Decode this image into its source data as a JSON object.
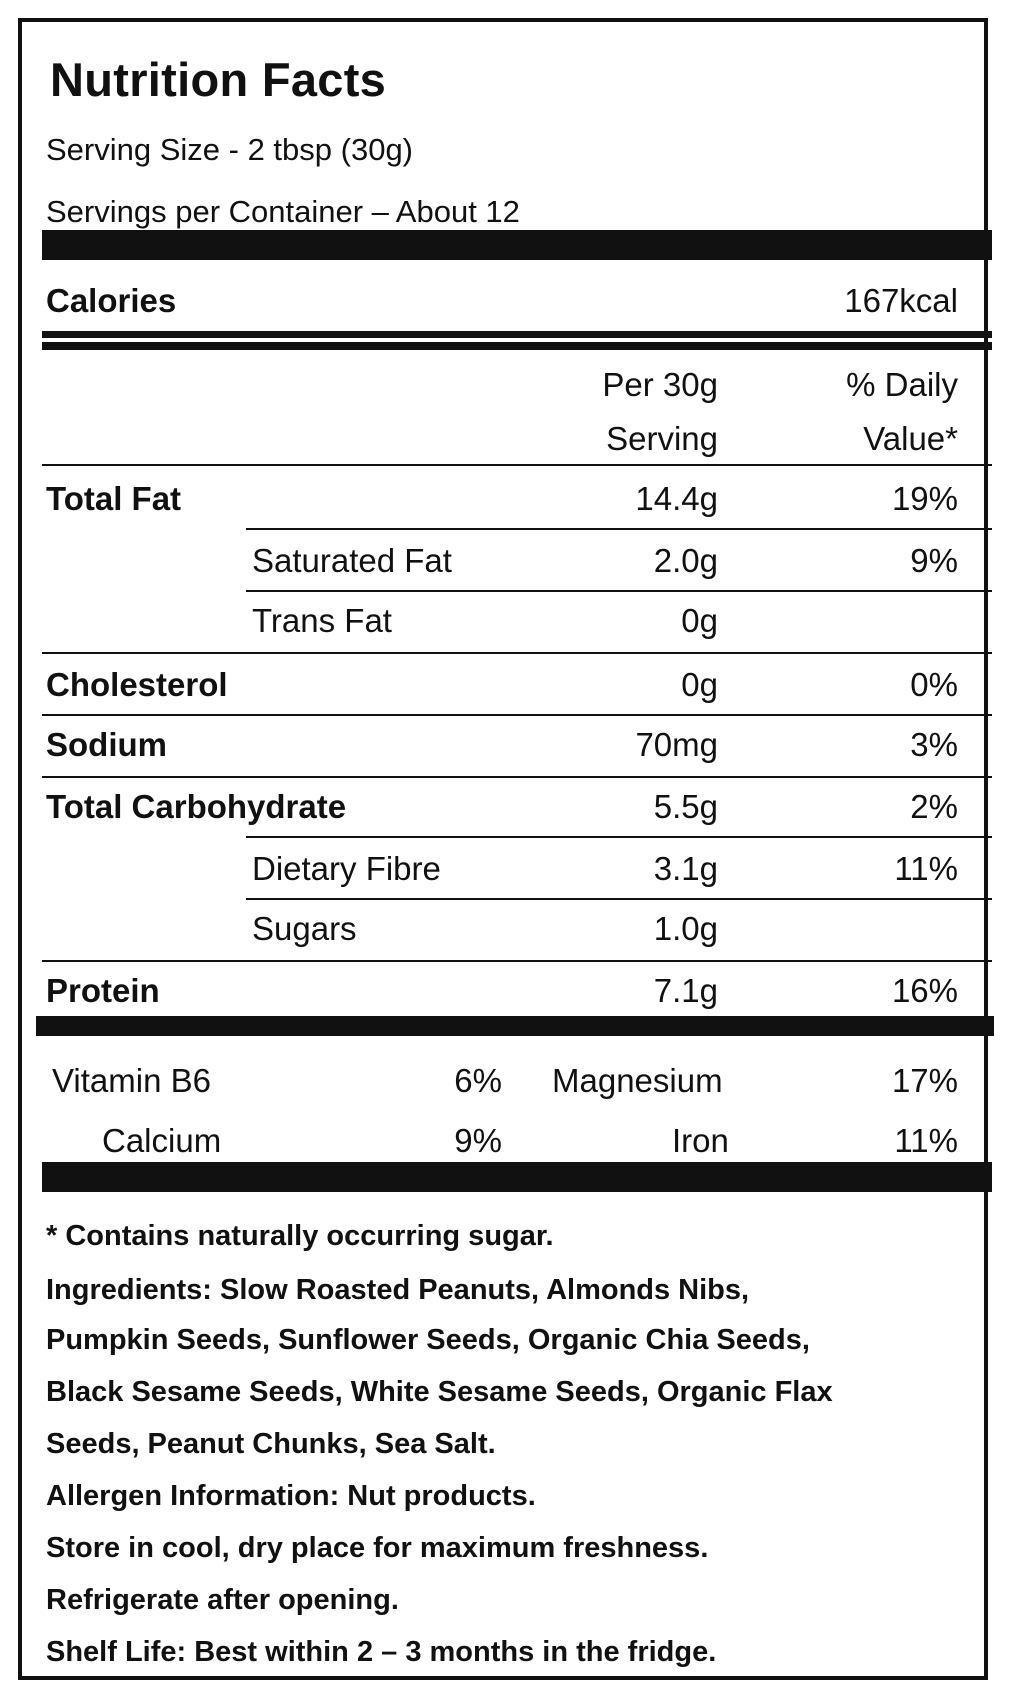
{
  "header": {
    "title": "Nutrition Facts",
    "serving_size": "Serving Size - 2 tbsp (30g)",
    "servings_per_container": "Servings per Container – About 12"
  },
  "calories": {
    "label": "Calories",
    "value": "167kcal"
  },
  "columns": {
    "per_serving_line1": "Per 30g",
    "per_serving_line2": "Serving",
    "daily_value_line1": "% Daily",
    "daily_value_line2": "Value*"
  },
  "nutrients": [
    {
      "name": "Total Fat",
      "amount": "14.4g",
      "dv": "19%"
    },
    {
      "name": "Saturated Fat",
      "amount": "2.0g",
      "dv": "9%"
    },
    {
      "name": "Trans Fat",
      "amount": "0g",
      "dv": ""
    },
    {
      "name": "Cholesterol",
      "amount": "0g",
      "dv": "0%"
    },
    {
      "name": "Sodium",
      "amount": "70mg",
      "dv": "3%"
    },
    {
      "name": "Total Carbohydrate",
      "amount": "5.5g",
      "dv": "2%"
    },
    {
      "name": "Dietary Fibre",
      "amount": "3.1g",
      "dv": "11%"
    },
    {
      "name": "Sugars",
      "amount": "1.0g",
      "dv": ""
    },
    {
      "name": "Protein",
      "amount": "7.1g",
      "dv": "16%"
    }
  ],
  "vitamins": [
    {
      "name": "Vitamin B6",
      "dv": "6%"
    },
    {
      "name": "Magnesium",
      "dv": "17%"
    },
    {
      "name": "Calcium",
      "dv": "9%"
    },
    {
      "name": "Iron",
      "dv": "11%"
    }
  ],
  "footer": {
    "sugar_note": "* Contains naturally occurring sugar.",
    "ingredients_line1": "Ingredients: Slow Roasted Peanuts, Almonds Nibs,",
    "ingredients_line2": "Pumpkin Seeds, Sunflower Seeds, Organic Chia Seeds,",
    "ingredients_line3": "Black Sesame Seeds, White Sesame Seeds, Organic Flax",
    "ingredients_line4": "Seeds, Peanut Chunks, Sea Salt.",
    "allergen": "Allergen Information: Nut products.",
    "storage": "Store in cool, dry place for maximum freshness.",
    "refrigerate": "Refrigerate after opening.",
    "shelf_life": "Shelf Life: Best within 2 – 3 months in the fridge."
  }
}
